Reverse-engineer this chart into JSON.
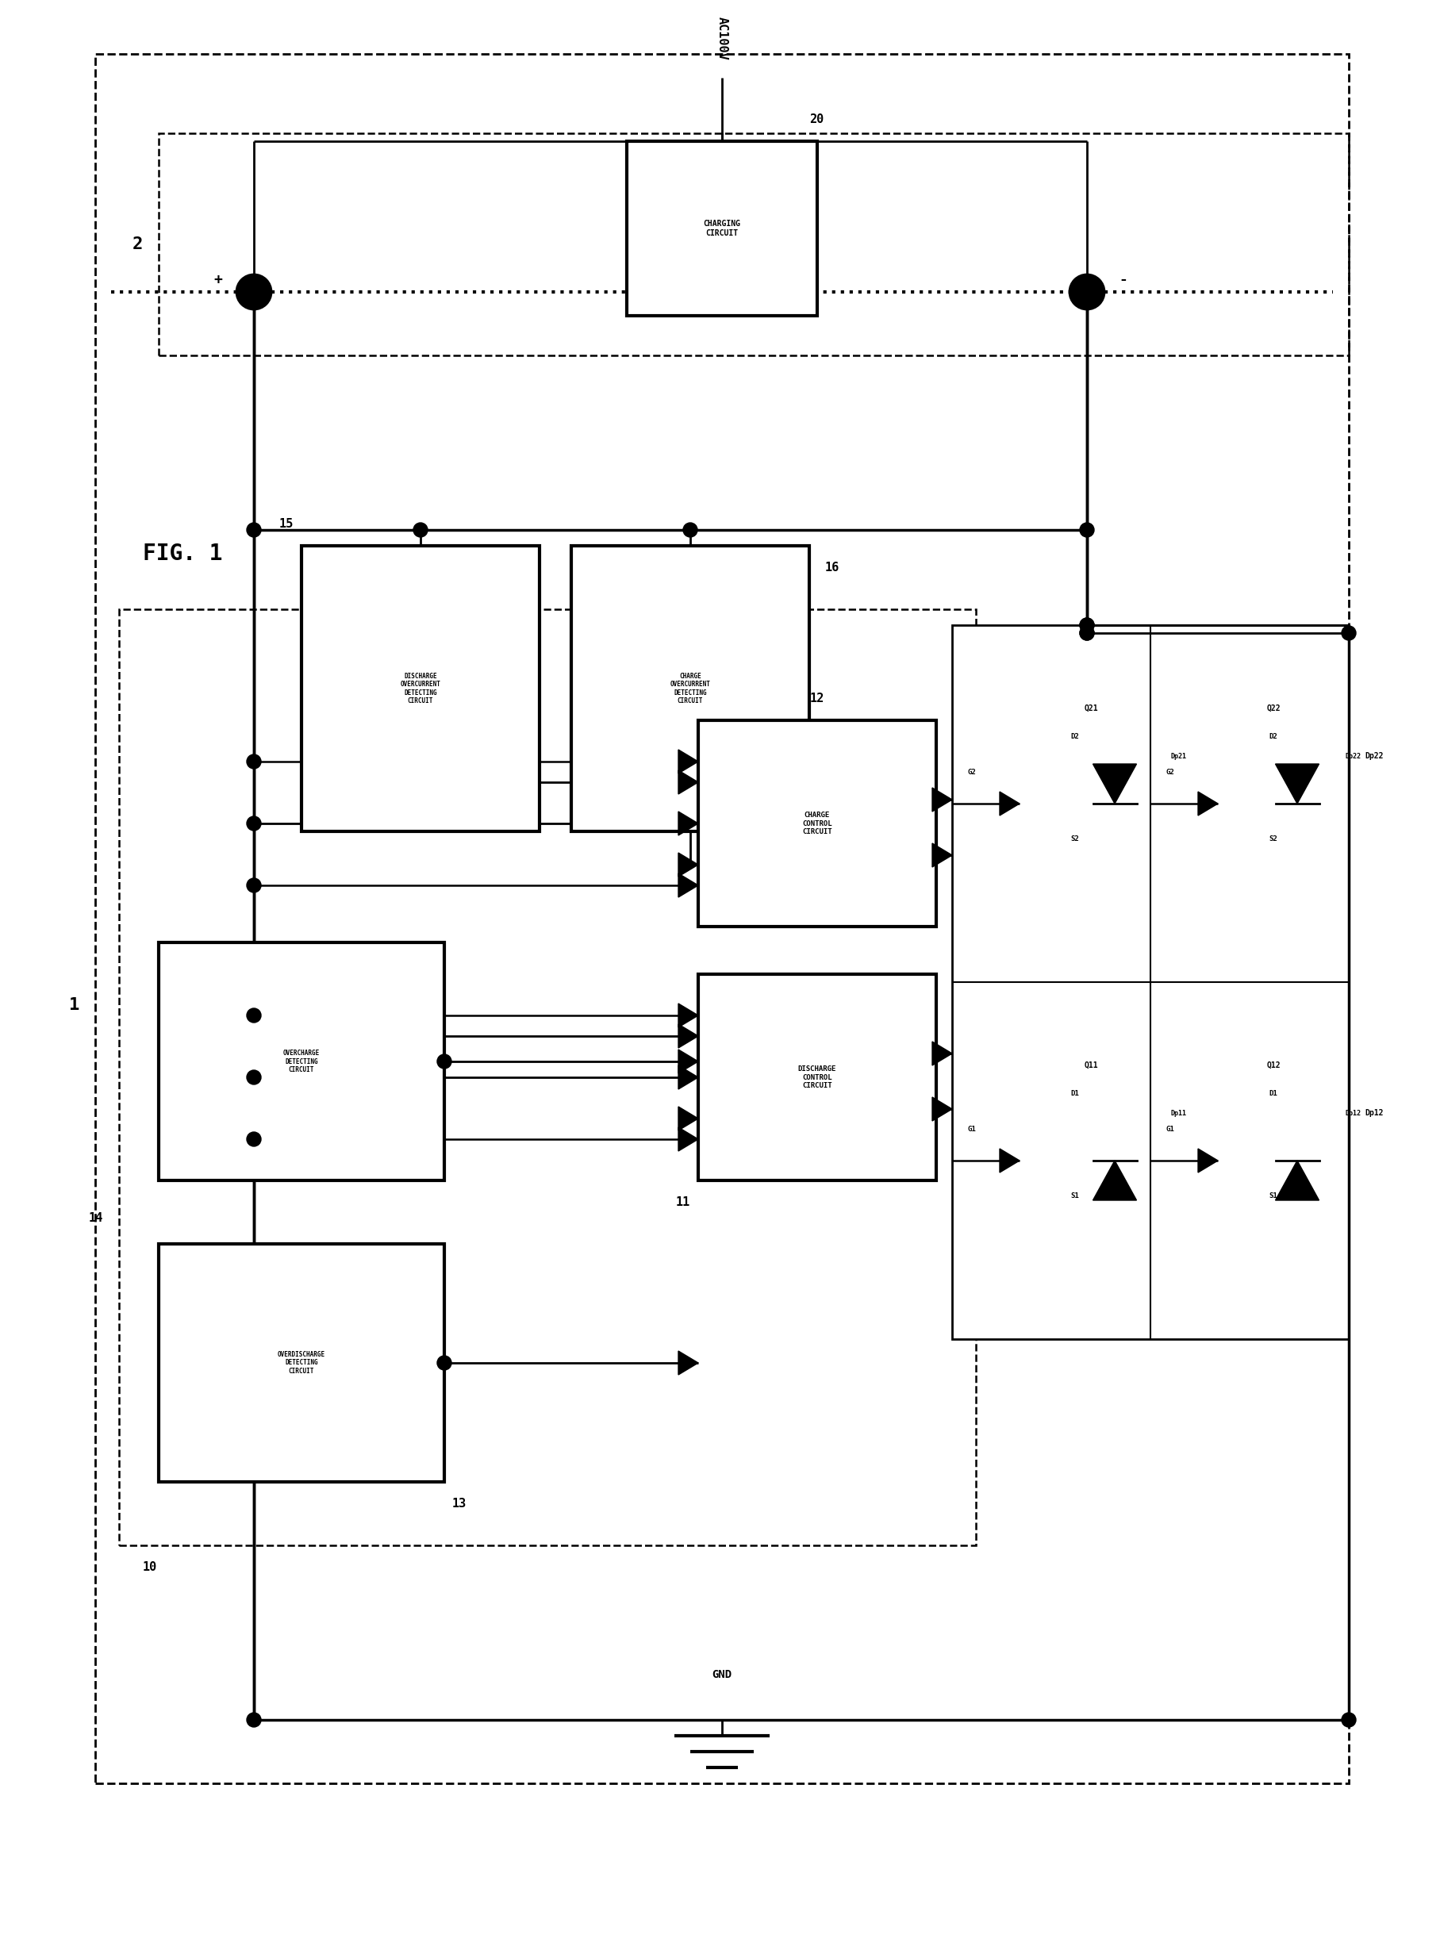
{
  "bg_color": "#ffffff",
  "fig_label": "FIG. 1",
  "ac_label": "AC100V",
  "num_20": "20",
  "num_15": "15",
  "num_16": "16",
  "num_12": "12",
  "num_11": "11",
  "num_14": "14",
  "num_10": "10",
  "num_13": "13",
  "num_1": "1",
  "num_2": "2",
  "gnd_label": "GND",
  "label_charging": "CHARGING\nCIRCUIT",
  "label_doc": "DISCHARGE\nOVERCURRENT\nDETECTING\nCIRCUIT",
  "label_coc": "CHARGE\nOVERCURRENT\nDETECTING\nCIRCUIT",
  "label_cc": "CHARGE\nCONTROL\nCIRCUIT",
  "label_dc": "DISCHARGE\nCONTROL\nCIRCUIT",
  "label_ovc": "OVERCHARGE\nDETECTING\nCIRCUIT",
  "label_ovd": "OVERDISCHARGE\nDETECTING\nCIRCUIT"
}
